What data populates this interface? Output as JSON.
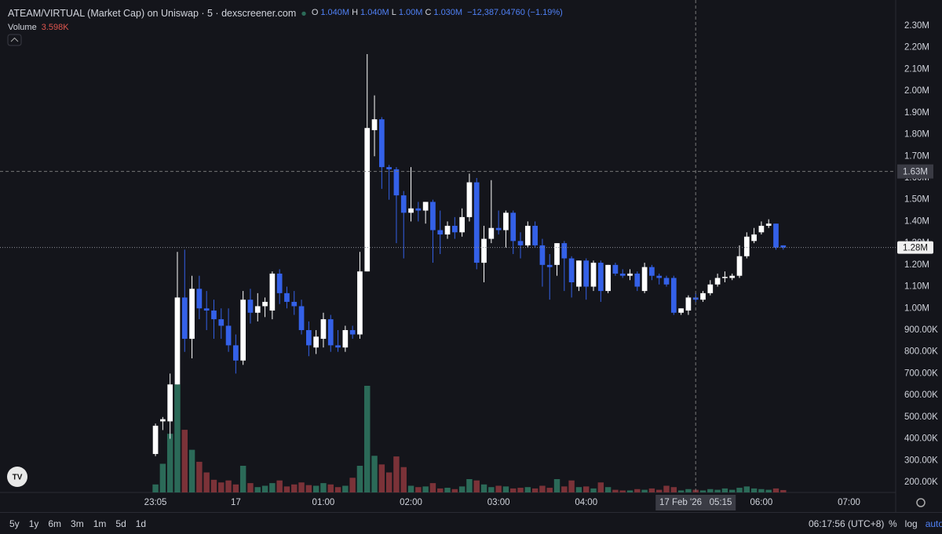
{
  "chart_data": {
    "type": "candlestick",
    "title": "ATEAM/VIRTUAL (Market Cap) on Uniswap · 5 · dexscreener.com",
    "ohlc_legend": [
      {
        "key": "O",
        "value": "1.040M"
      },
      {
        "key": "H",
        "value": "1.040M"
      },
      {
        "key": "L",
        "value": "1.00M"
      },
      {
        "key": "C",
        "value": "1.030M"
      }
    ],
    "change": "−12,387.04760 (−1.19%)",
    "volume_title": "Volume",
    "volume_label": "3.598K",
    "up_color": "#ffffff",
    "down_color": "#3461e8",
    "volume_up_color": "#2b6a58",
    "volume_down_color": "#7b3238",
    "ohlc": [
      [
        330,
        470,
        320,
        460
      ],
      [
        480,
        500,
        440,
        490
      ],
      [
        480,
        700,
        400,
        650
      ],
      [
        650,
        1260,
        650,
        1050
      ],
      [
        1050,
        1270,
        800,
        860
      ],
      [
        860,
        1150,
        770,
        1090
      ],
      [
        1090,
        1150,
        950,
        1000
      ],
      [
        1000,
        1080,
        900,
        990
      ],
      [
        990,
        1040,
        860,
        950
      ],
      [
        950,
        1000,
        860,
        920
      ],
      [
        920,
        1000,
        800,
        830
      ],
      [
        830,
        880,
        700,
        760
      ],
      [
        760,
        1080,
        740,
        1040
      ],
      [
        1040,
        1090,
        930,
        980
      ],
      [
        980,
        1070,
        940,
        1010
      ],
      [
        1010,
        1050,
        960,
        1030
      ],
      [
        990,
        1170,
        950,
        1160
      ],
      [
        1160,
        1180,
        1020,
        1070
      ],
      [
        1070,
        1100,
        1000,
        1030
      ],
      [
        1030,
        1080,
        970,
        1010
      ],
      [
        1010,
        1040,
        880,
        900
      ],
      [
        900,
        940,
        780,
        830
      ],
      [
        820,
        900,
        790,
        870
      ],
      [
        860,
        980,
        820,
        950
      ],
      [
        950,
        970,
        800,
        830
      ],
      [
        830,
        900,
        800,
        820
      ],
      [
        820,
        920,
        800,
        900
      ],
      [
        900,
        920,
        860,
        880
      ],
      [
        880,
        1260,
        860,
        1170
      ],
      [
        1170,
        2170,
        1170,
        1830
      ],
      [
        1820,
        1980,
        1700,
        1870
      ],
      [
        1870,
        1880,
        1550,
        1650
      ],
      [
        1650,
        1660,
        1500,
        1640
      ],
      [
        1640,
        1650,
        1300,
        1520
      ],
      [
        1520,
        1540,
        1230,
        1440
      ],
      [
        1440,
        1650,
        1400,
        1460
      ],
      [
        1460,
        1490,
        1400,
        1450
      ],
      [
        1450,
        1490,
        1390,
        1490
      ],
      [
        1490,
        1500,
        1210,
        1360
      ],
      [
        1360,
        1450,
        1250,
        1340
      ],
      [
        1340,
        1400,
        1320,
        1380
      ],
      [
        1380,
        1420,
        1320,
        1350
      ],
      [
        1350,
        1460,
        1330,
        1420
      ],
      [
        1420,
        1620,
        1400,
        1580
      ],
      [
        1580,
        1600,
        1180,
        1210
      ],
      [
        1210,
        1380,
        1120,
        1320
      ],
      [
        1320,
        1590,
        1300,
        1370
      ],
      [
        1370,
        1450,
        1340,
        1360
      ],
      [
        1360,
        1450,
        1280,
        1440
      ],
      [
        1440,
        1450,
        1250,
        1310
      ],
      [
        1310,
        1350,
        1230,
        1290
      ],
      [
        1290,
        1400,
        1280,
        1380
      ],
      [
        1380,
        1400,
        1280,
        1290
      ],
      [
        1290,
        1320,
        1100,
        1200
      ],
      [
        1200,
        1250,
        1040,
        1190
      ],
      [
        1200,
        1300,
        1150,
        1300
      ],
      [
        1300,
        1310,
        1080,
        1230
      ],
      [
        1230,
        1240,
        1050,
        1120
      ],
      [
        1100,
        1220,
        1080,
        1220
      ],
      [
        1220,
        1230,
        1040,
        1100
      ],
      [
        1100,
        1220,
        1080,
        1210
      ],
      [
        1210,
        1220,
        1030,
        1080
      ],
      [
        1080,
        1200,
        1070,
        1200
      ],
      [
        1200,
        1210,
        1150,
        1160
      ],
      [
        1160,
        1180,
        1140,
        1150
      ],
      [
        1150,
        1180,
        1130,
        1160
      ],
      [
        1160,
        1170,
        1080,
        1100
      ],
      [
        1080,
        1210,
        1070,
        1190
      ],
      [
        1190,
        1200,
        1130,
        1150
      ],
      [
        1150,
        1160,
        1110,
        1140
      ],
      [
        1140,
        1150,
        1100,
        1110
      ],
      [
        1140,
        1150,
        970,
        980
      ],
      [
        980,
        1000,
        970,
        1000
      ],
      [
        990,
        1060,
        970,
        1050
      ],
      [
        1050,
        1070,
        1030,
        1040
      ],
      [
        1040,
        1080,
        1030,
        1070
      ],
      [
        1070,
        1130,
        1060,
        1110
      ],
      [
        1110,
        1160,
        1100,
        1140
      ],
      [
        1140,
        1170,
        1120,
        1145
      ],
      [
        1140,
        1160,
        1130,
        1150
      ],
      [
        1150,
        1290,
        1140,
        1240
      ],
      [
        1240,
        1350,
        1230,
        1330
      ],
      [
        1310,
        1370,
        1300,
        1340
      ],
      [
        1350,
        1400,
        1340,
        1380
      ],
      [
        1380,
        1410,
        1370,
        1390
      ],
      [
        1390,
        1390,
        1270,
        1280
      ],
      [
        1290,
        1290,
        1270,
        1280
      ]
    ],
    "volume": [
      12,
      43,
      88,
      162,
      94,
      64,
      46,
      30,
      19,
      15,
      18,
      12,
      40,
      14,
      8,
      10,
      14,
      18,
      9,
      12,
      15,
      11,
      10,
      14,
      12,
      8,
      10,
      22,
      40,
      160,
      55,
      42,
      30,
      54,
      38,
      10,
      8,
      9,
      14,
      6,
      7,
      5,
      9,
      20,
      18,
      12,
      8,
      10,
      9,
      6,
      7,
      8,
      6,
      10,
      7,
      20,
      9,
      18,
      8,
      9,
      6,
      15,
      8,
      4,
      3,
      3,
      5,
      4,
      6,
      4,
      10,
      8,
      3,
      5,
      4,
      3,
      5,
      4,
      6,
      4,
      7,
      9,
      6,
      5,
      4,
      6,
      3.598
    ],
    "xlim": [
      -21.3,
      101.4
    ],
    "xticks": [
      {
        "value": 0,
        "label": "23:05"
      },
      {
        "value": 11,
        "label": "17"
      },
      {
        "value": 23,
        "label": "01:00"
      },
      {
        "value": 35,
        "label": "02:00"
      },
      {
        "value": 47,
        "label": "03:00"
      },
      {
        "value": 59,
        "label": "04:00"
      },
      {
        "value": 83,
        "label": "06:00"
      },
      {
        "value": 95,
        "label": "07:00"
      }
    ],
    "ylim": [
      153,
      2419
    ],
    "yticks": [
      {
        "value": 200,
        "label": "200.00K"
      },
      {
        "value": 300,
        "label": "300.00K"
      },
      {
        "value": 400,
        "label": "400.00K"
      },
      {
        "value": 500,
        "label": "500.00K"
      },
      {
        "value": 600,
        "label": "600.00K"
      },
      {
        "value": 700,
        "label": "700.00K"
      },
      {
        "value": 800,
        "label": "800.00K"
      },
      {
        "value": 900,
        "label": "900.00K"
      },
      {
        "value": 1000,
        "label": "1.00M"
      },
      {
        "value": 1100,
        "label": "1.10M"
      },
      {
        "value": 1200,
        "label": "1.20M"
      },
      {
        "value": 1300,
        "label": "1.30M"
      },
      {
        "value": 1400,
        "label": "1.40M"
      },
      {
        "value": 1500,
        "label": "1.50M"
      },
      {
        "value": 1600,
        "label": "1.60M"
      },
      {
        "value": 1700,
        "label": "1.70M"
      },
      {
        "value": 1800,
        "label": "1.80M"
      },
      {
        "value": 1900,
        "label": "1.90M"
      },
      {
        "value": 2000,
        "label": "2.00M"
      },
      {
        "value": 2100,
        "label": "2.10M"
      },
      {
        "value": 2200,
        "label": "2.20M"
      },
      {
        "value": 2300,
        "label": "2.30M"
      }
    ],
    "vlim": [
      0,
      200
    ],
    "crosshair": {
      "x": 74,
      "x_label": "17 Feb '26   05:15",
      "y": {
        "value": 1630,
        "label": "1.63M"
      }
    },
    "last_price": {
      "value": 1280,
      "label": "1.28M"
    },
    "ranges": [
      "5y",
      "1y",
      "6m",
      "3m",
      "1m",
      "5d",
      "1d"
    ],
    "clock": "06:17:56 (UTC+8)",
    "options": [
      "%",
      "log",
      "auto"
    ]
  }
}
